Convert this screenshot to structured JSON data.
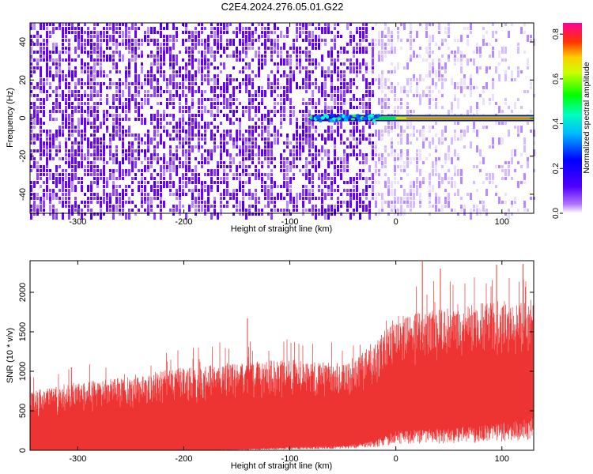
{
  "chart_data": [
    {
      "type": "heatmap",
      "title": "C2E4.2024.276.05.01.G22",
      "xlabel": "Height of straight line (km)",
      "ylabel": "Frequency (Hz)",
      "xlim": [
        -345,
        130
      ],
      "ylim": [
        -50,
        50
      ],
      "x_ticks": [
        -300,
        -200,
        -100,
        0,
        100
      ],
      "y_ticks": [
        -40,
        -20,
        0,
        20,
        40
      ],
      "colorbar": {
        "label": "Normalized spectral amplitude",
        "range": [
          0,
          0.85
        ],
        "ticks": [
          0.0,
          0.2,
          0.4,
          0.6,
          0.8
        ],
        "colormap": [
          "#ffffff",
          "#8800ff",
          "#0000ff",
          "#00ffff",
          "#00ff00",
          "#ffff00",
          "#ff0000",
          "#ff00aa"
        ]
      },
      "features": [
        {
          "name": "noise-floor",
          "x_range": [
            -345,
            130
          ],
          "y_range": [
            -50,
            50
          ],
          "amplitude": 0.05
        },
        {
          "name": "signal-line",
          "x_range": [
            -80,
            130
          ],
          "y": 0,
          "amplitude_start": 0.35,
          "amplitude_end": 0.8
        }
      ],
      "grid": false
    },
    {
      "type": "line",
      "xlabel": "Height of straight line (km)",
      "ylabel": "SNR (10 * v/v)",
      "xlim": [
        -345,
        130
      ],
      "ylim": [
        0,
        2400
      ],
      "x_ticks": [
        -300,
        -200,
        -100,
        0,
        100
      ],
      "y_ticks": [
        0,
        500,
        1000,
        1500,
        2000
      ],
      "series": [
        {
          "color": "#ee3333",
          "envelope_x": [
            -345,
            -300,
            -250,
            -200,
            -150,
            -100,
            -50,
            -20,
            0,
            50,
            100,
            130
          ],
          "envelope_low": [
            0,
            0,
            0,
            0,
            10,
            40,
            60,
            120,
            250,
            280,
            350,
            420
          ],
          "envelope_high": [
            750,
            850,
            950,
            1050,
            1120,
            1150,
            1100,
            1350,
            1700,
            1800,
            1900,
            1850
          ],
          "spikes": [
            {
              "x": -306,
              "y": 1050
            },
            {
              "x": -140,
              "y": 1670
            },
            {
              "x": 25,
              "y": 2390
            },
            {
              "x": 42,
              "y": 2300
            },
            {
              "x": 95,
              "y": 2350
            },
            {
              "x": 120,
              "y": 2360
            }
          ]
        }
      ],
      "grid": false
    }
  ]
}
